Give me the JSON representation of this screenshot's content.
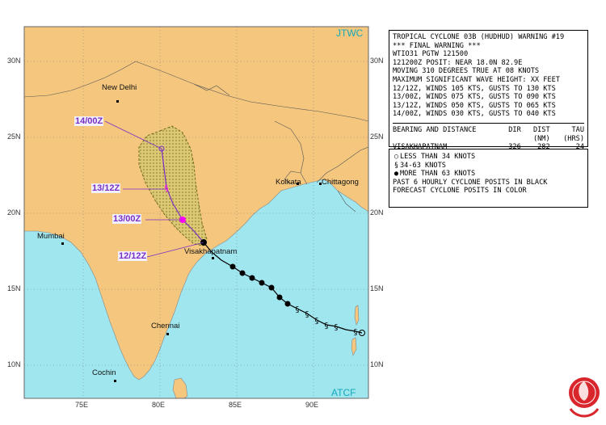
{
  "map": {
    "source_top": "JTWC",
    "source_bottom": "ATCF",
    "lat_labels_left": [
      "30N",
      "25N",
      "20N",
      "15N",
      "10N"
    ],
    "lat_labels_right": [
      "30N",
      "25N",
      "20N",
      "15N",
      "10N"
    ],
    "lon_labels": [
      "75E",
      "80E",
      "85E",
      "90E"
    ],
    "cities": {
      "new_delhi": "New Delhi",
      "kolkata": "Kolkata",
      "chittagong": "Chittagong",
      "mumbai": "Mumbai",
      "visakhapatnam": "Visakhapatnam",
      "chennai": "Chennai",
      "cochin": "Cochin"
    },
    "forecast_labels": [
      "12/12Z",
      "13/00Z",
      "13/12Z",
      "14/00Z"
    ],
    "colors": {
      "land": "#f5c77e",
      "water": "#9fe6ee",
      "forecast": "#7a2fc4",
      "danger_area": "#c9c96a",
      "label": "#7a2fc4"
    }
  },
  "warning": {
    "lines": [
      "TROPICAL CYCLONE 03B (HUDHUD) WARNING #19",
      "*** FINAL WARNING ***",
      "WTIO31 PGTW 121500",
      "121200Z POSIT: NEAR 18.0N 82.9E",
      "MOVING 310 DEGREES TRUE AT 08 KNOTS",
      "MAXIMUM SIGNIFICANT WAVE HEIGHT: XX FEET",
      "12/12Z, WINDS 105 KTS, GUSTS TO 130 KTS",
      "13/00Z, WINDS 075 KTS, GUSTS TO 090 KTS",
      "13/12Z, WINDS 050 KTS, GUSTS TO 065 KTS",
      "14/00Z, WINDS 030 KTS, GUSTS TO 040 KTS"
    ],
    "bearing": {
      "heading": "BEARING AND DISTANCE",
      "col_dir": "DIR",
      "col_dist": "DIST",
      "col_dist_unit": "(NM)",
      "col_tau": "TAU",
      "col_tau_unit": "(HRS)",
      "place": "VISAKHAPATNAM",
      "dir": "326",
      "dist": "282",
      "tau": "24"
    }
  },
  "legend": {
    "lines": [
      "LESS THAN 34 KNOTS",
      "34-63 KNOTS",
      "MORE THAN 63 KNOTS",
      "PAST 6 HOURLY CYCLONE POSITS IN BLACK",
      "FORECAST CYCLONE POSITS IN COLOR"
    ]
  }
}
